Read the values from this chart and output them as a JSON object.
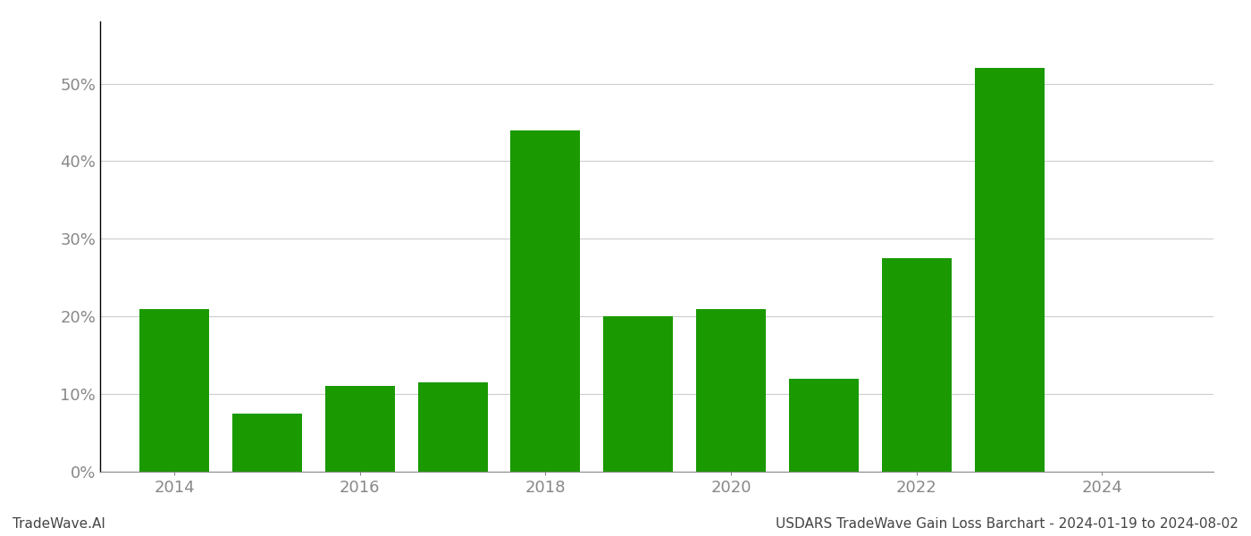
{
  "years": [
    2014,
    2015,
    2016,
    2017,
    2018,
    2019,
    2020,
    2021,
    2022,
    2023
  ],
  "values": [
    0.21,
    0.075,
    0.11,
    0.115,
    0.44,
    0.2,
    0.21,
    0.12,
    0.275,
    0.52
  ],
  "bar_color": "#1a9900",
  "background_color": "#ffffff",
  "grid_color": "#cccccc",
  "spine_color": "#888888",
  "tick_label_color": "#888888",
  "left_spine_color": "#000000",
  "footer_left": "TradeWave.AI",
  "footer_right": "USDARS TradeWave Gain Loss Barchart - 2024-01-19 to 2024-08-02",
  "ylim": [
    0,
    0.58
  ],
  "yticks": [
    0.0,
    0.1,
    0.2,
    0.3,
    0.4,
    0.5
  ],
  "xticks": [
    2014,
    2016,
    2018,
    2020,
    2022,
    2024
  ],
  "xlim": [
    2013.2,
    2025.2
  ],
  "bar_width": 0.75,
  "footer_fontsize": 11,
  "tick_fontsize": 13
}
